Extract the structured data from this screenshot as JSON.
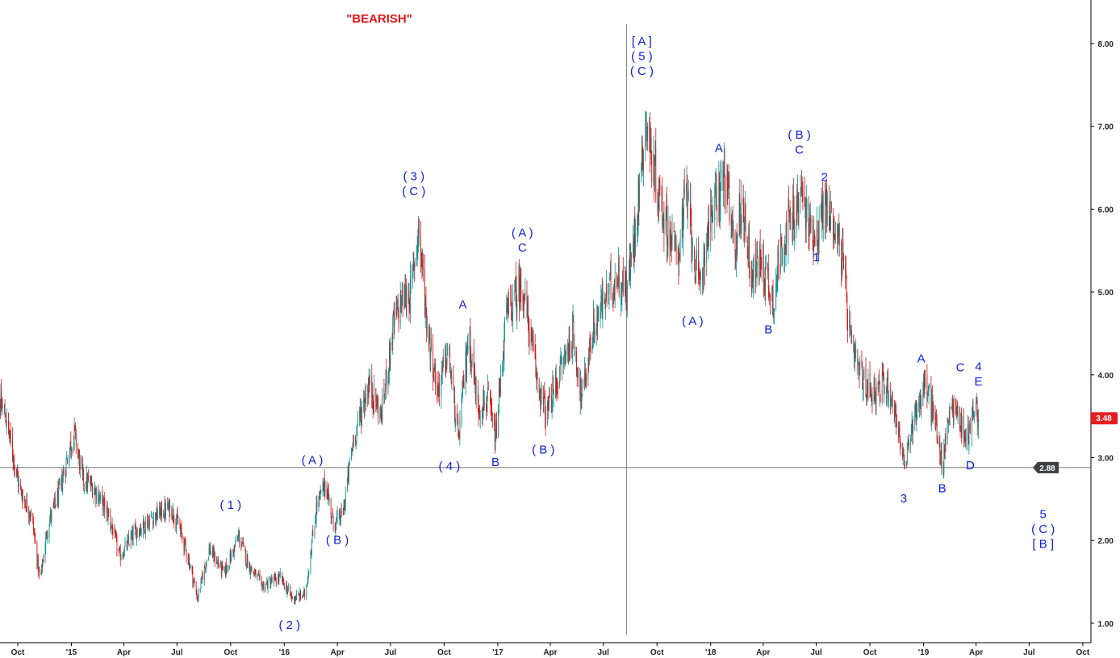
{
  "chart_data": {
    "type": "candlestick",
    "title": "\"BEARISH\"",
    "ylim": [
      0.85,
      8.3
    ],
    "y_ticks": [
      "8.00",
      "7.00",
      "6.00",
      "5.00",
      "4.00",
      "3.00",
      "2.00",
      "1.00"
    ],
    "x_ticks": [
      "Oct",
      "'15",
      "Apr",
      "Jul",
      "Oct",
      "'16",
      "Apr",
      "Jul",
      "Oct",
      "'17",
      "Apr",
      "Jul",
      "Oct",
      "'18",
      "Apr",
      "Jul",
      "Oct",
      "'19",
      "Apr",
      "Jul",
      "Oct"
    ],
    "x_tick_dates": [
      "2014-10-01",
      "2015-01-01",
      "2015-04-01",
      "2015-07-01",
      "2015-10-01",
      "2016-01-01",
      "2016-04-01",
      "2016-07-01",
      "2016-10-01",
      "2017-01-01",
      "2017-04-01",
      "2017-07-01",
      "2017-10-01",
      "2018-01-01",
      "2018-04-01",
      "2018-07-01",
      "2018-10-01",
      "2019-01-01",
      "2019-04-01",
      "2019-07-01",
      "2019-10-01"
    ],
    "last_price": "3.48",
    "reference_level": {
      "value": 2.88,
      "label": "2.88"
    },
    "vertical_marker_date": "2017-08-10",
    "colors": {
      "up": "#0f8f8f",
      "down": "#d21a1a",
      "waves": "#0b1fd6",
      "title": "#e3161b",
      "grid": "#666666"
    },
    "price_path": [
      [
        "2014-08-20",
        3.85
      ],
      [
        "2014-09-10",
        3.5
      ],
      [
        "2014-10-05",
        2.6
      ],
      [
        "2014-10-25",
        2.3
      ],
      [
        "2014-11-08",
        1.5
      ],
      [
        "2014-11-22",
        2.2
      ],
      [
        "2014-12-12",
        2.6
      ],
      [
        "2014-12-28",
        3.1
      ],
      [
        "2015-01-06",
        3.3
      ],
      [
        "2015-01-20",
        2.75
      ],
      [
        "2015-02-12",
        2.6
      ],
      [
        "2015-03-06",
        2.3
      ],
      [
        "2015-03-25",
        1.8
      ],
      [
        "2015-04-20",
        2.1
      ],
      [
        "2015-05-25",
        2.3
      ],
      [
        "2015-06-20",
        2.4
      ],
      [
        "2015-07-03",
        2.2
      ],
      [
        "2015-07-20",
        1.8
      ],
      [
        "2015-08-05",
        1.3
      ],
      [
        "2015-08-25",
        1.9
      ],
      [
        "2015-09-20",
        1.6
      ],
      [
        "2015-10-15",
        2.05
      ],
      [
        "2015-11-01",
        1.7
      ],
      [
        "2015-11-25",
        1.45
      ],
      [
        "2015-12-25",
        1.55
      ],
      [
        "2016-01-15",
        1.3
      ],
      [
        "2016-02-06",
        1.35
      ],
      [
        "2016-02-25",
        2.4
      ],
      [
        "2016-03-12",
        2.7
      ],
      [
        "2016-03-25",
        2.2
      ],
      [
        "2016-04-10",
        2.3
      ],
      [
        "2016-04-28",
        3.2
      ],
      [
        "2016-05-25",
        3.9
      ],
      [
        "2016-06-15",
        3.5
      ],
      [
        "2016-07-06",
        4.6
      ],
      [
        "2016-07-20",
        4.9
      ],
      [
        "2016-08-05",
        5.0
      ],
      [
        "2016-08-18",
        5.8
      ],
      [
        "2016-09-02",
        4.6
      ],
      [
        "2016-09-20",
        3.8
      ],
      [
        "2016-10-08",
        4.3
      ],
      [
        "2016-10-25",
        3.2
      ],
      [
        "2016-11-12",
        4.5
      ],
      [
        "2016-11-28",
        3.6
      ],
      [
        "2016-12-15",
        3.7
      ],
      [
        "2016-12-28",
        3.2
      ],
      [
        "2017-01-15",
        4.7
      ],
      [
        "2017-02-12",
        5.1
      ],
      [
        "2017-03-08",
        4.0
      ],
      [
        "2017-03-25",
        3.5
      ],
      [
        "2017-04-20",
        4.1
      ],
      [
        "2017-05-10",
        4.5
      ],
      [
        "2017-05-25",
        3.7
      ],
      [
        "2017-06-12",
        4.5
      ],
      [
        "2017-07-02",
        4.9
      ],
      [
        "2017-07-25",
        5.2
      ],
      [
        "2017-08-10",
        5.0
      ],
      [
        "2017-08-22",
        5.6
      ],
      [
        "2017-09-12",
        7.1
      ],
      [
        "2017-09-22",
        6.6
      ],
      [
        "2017-10-10",
        6.0
      ],
      [
        "2017-11-05",
        5.4
      ],
      [
        "2017-11-20",
        6.2
      ],
      [
        "2017-12-12",
        5.0
      ],
      [
        "2017-12-28",
        5.8
      ],
      [
        "2018-01-15",
        6.2
      ],
      [
        "2018-01-25",
        6.45
      ],
      [
        "2018-02-10",
        5.5
      ],
      [
        "2018-02-25",
        6.1
      ],
      [
        "2018-03-12",
        5.2
      ],
      [
        "2018-03-28",
        5.4
      ],
      [
        "2018-04-18",
        4.9
      ],
      [
        "2018-05-06",
        5.7
      ],
      [
        "2018-05-25",
        5.9
      ],
      [
        "2018-06-06",
        6.2
      ],
      [
        "2018-06-18",
        5.8
      ],
      [
        "2018-07-03",
        5.7
      ],
      [
        "2018-07-15",
        6.05
      ],
      [
        "2018-08-02",
        5.8
      ],
      [
        "2018-08-15",
        5.4
      ],
      [
        "2018-08-30",
        4.3
      ],
      [
        "2018-09-20",
        3.9
      ],
      [
        "2018-10-10",
        3.8
      ],
      [
        "2018-10-30",
        3.9
      ],
      [
        "2018-11-15",
        3.5
      ],
      [
        "2018-11-30",
        2.85
      ],
      [
        "2018-12-15",
        3.5
      ],
      [
        "2019-01-05",
        3.9
      ],
      [
        "2019-01-25",
        3.3
      ],
      [
        "2019-02-02",
        2.85
      ],
      [
        "2019-02-15",
        3.65
      ],
      [
        "2019-03-03",
        3.5
      ],
      [
        "2019-03-15",
        3.2
      ],
      [
        "2019-03-28",
        3.6
      ],
      [
        "2019-04-05",
        3.48
      ]
    ]
  },
  "wave_labels": [
    {
      "date": "2016-02-18",
      "price": 2.92,
      "lines": [
        "( A )"
      ]
    },
    {
      "date": "2016-04-01",
      "price": 1.96,
      "lines": [
        "( B )"
      ]
    },
    {
      "date": "2015-10-01",
      "price": 2.38,
      "lines": [
        "( 1 )"
      ]
    },
    {
      "date": "2016-01-10",
      "price": 0.93,
      "lines": [
        "( 2 )"
      ]
    },
    {
      "date": "2016-08-10",
      "price": 6.35,
      "lines": [
        "( 3 )",
        "( C )"
      ]
    },
    {
      "date": "2016-10-10",
      "price": 2.85,
      "lines": [
        "( 4 )"
      ]
    },
    {
      "date": "2016-11-02",
      "price": 4.8,
      "lines": [
        "A"
      ]
    },
    {
      "date": "2016-12-28",
      "price": 2.9,
      "lines": [
        "B"
      ]
    },
    {
      "date": "2017-02-12",
      "price": 5.67,
      "lines": [
        "( A )",
        "C"
      ]
    },
    {
      "date": "2017-03-20",
      "price": 3.05,
      "lines": [
        "( B )"
      ]
    },
    {
      "date": "2017-09-05",
      "price": 7.98,
      "lines": [
        "[ A ]",
        "( 5 )",
        "( C )"
      ]
    },
    {
      "date": "2017-12-01",
      "price": 4.6,
      "lines": [
        "( A )"
      ]
    },
    {
      "date": "2018-01-15",
      "price": 6.69,
      "lines": [
        "A"
      ]
    },
    {
      "date": "2018-04-10",
      "price": 4.5,
      "lines": [
        "B"
      ]
    },
    {
      "date": "2018-06-02",
      "price": 6.85,
      "lines": [
        "( B )",
        "C"
      ]
    },
    {
      "date": "2018-07-15",
      "price": 6.34,
      "lines": [
        "2"
      ]
    },
    {
      "date": "2018-07-01",
      "price": 5.37,
      "lines": [
        "1"
      ]
    },
    {
      "date": "2018-11-28",
      "price": 2.46,
      "lines": [
        "3"
      ]
    },
    {
      "date": "2018-12-28",
      "price": 4.15,
      "lines": [
        "A"
      ]
    },
    {
      "date": "2019-02-02",
      "price": 2.58,
      "lines": [
        "B"
      ]
    },
    {
      "date": "2019-03-05",
      "price": 4.04,
      "lines": [
        "C"
      ]
    },
    {
      "date": "2019-03-22",
      "price": 2.86,
      "lines": [
        "D"
      ]
    },
    {
      "date": "2019-04-05",
      "price": 4.05,
      "lines": [
        "4",
        "E"
      ]
    },
    {
      "date": "2019-07-25",
      "price": 2.27,
      "lines": [
        "5",
        "( C )",
        "[ B ]"
      ]
    }
  ]
}
